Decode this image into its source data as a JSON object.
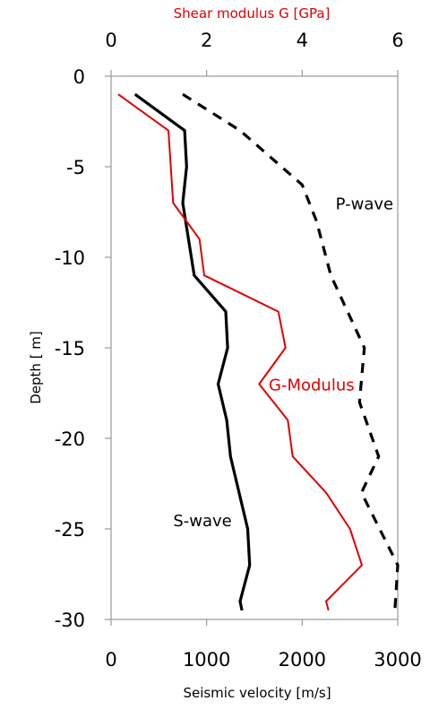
{
  "chart_data": {
    "type": "line",
    "title": "",
    "xlabel": "Seismic velocity [m/s]",
    "ylabel": "Depth [ m]",
    "x2label": "Shear modulus G [GPa]",
    "xlim": [
      0,
      3000
    ],
    "x2lim": [
      0,
      6
    ],
    "ylim": [
      -30,
      0
    ],
    "xticks": [
      "0",
      "1000",
      "2000",
      "3000"
    ],
    "x2ticks": [
      "0",
      "2",
      "4",
      "6"
    ],
    "yticks": [
      "0",
      "-5",
      "-10",
      "-15",
      "-20",
      "-25",
      "-30"
    ],
    "grid": false,
    "colors": {
      "s_wave": "#000000",
      "p_wave": "#000000",
      "g_modulus": "#e00000"
    },
    "series": [
      {
        "name": "P-wave",
        "axis": "bottom",
        "style": "dashed",
        "x": [
          750,
          1350,
          2000,
          2150,
          2300,
          2650,
          2600,
          2800,
          2620,
          3000,
          2970
        ],
        "y": [
          -1,
          -3,
          -6,
          -8,
          -11,
          -15,
          -18,
          -21,
          -23,
          -27,
          -29.5
        ]
      },
      {
        "name": "S-wave",
        "axis": "bottom",
        "style": "solid",
        "x": [
          250,
          770,
          790,
          750,
          870,
          1200,
          1220,
          1120,
          1210,
          1250,
          1430,
          1450,
          1350,
          1370
        ],
        "y": [
          -1,
          -3,
          -5,
          -7,
          -11,
          -13,
          -15,
          -17,
          -19,
          -21,
          -25,
          -27,
          -29,
          -29.5
        ]
      },
      {
        "name": "G-Modulus",
        "axis": "top",
        "style": "solid",
        "x": [
          0.15,
          1.2,
          1.3,
          1.85,
          1.95,
          3.5,
          3.65,
          3.1,
          3.7,
          3.8,
          4.5,
          5.0,
          5.25,
          4.5,
          4.55
        ],
        "y": [
          -1,
          -3,
          -7,
          -9,
          -11,
          -13,
          -15,
          -17,
          -19,
          -21,
          -23,
          -25,
          -27,
          -29,
          -29.5
        ]
      }
    ],
    "annotations": [
      {
        "text": "P-wave",
        "color": "#000000",
        "x": 2350,
        "y": -7
      },
      {
        "text": "G-Modulus",
        "color": "#e00000",
        "x": 1650,
        "y": -17
      },
      {
        "text": "S-wave",
        "color": "#000000",
        "x": 650,
        "y": -24.5
      }
    ]
  }
}
